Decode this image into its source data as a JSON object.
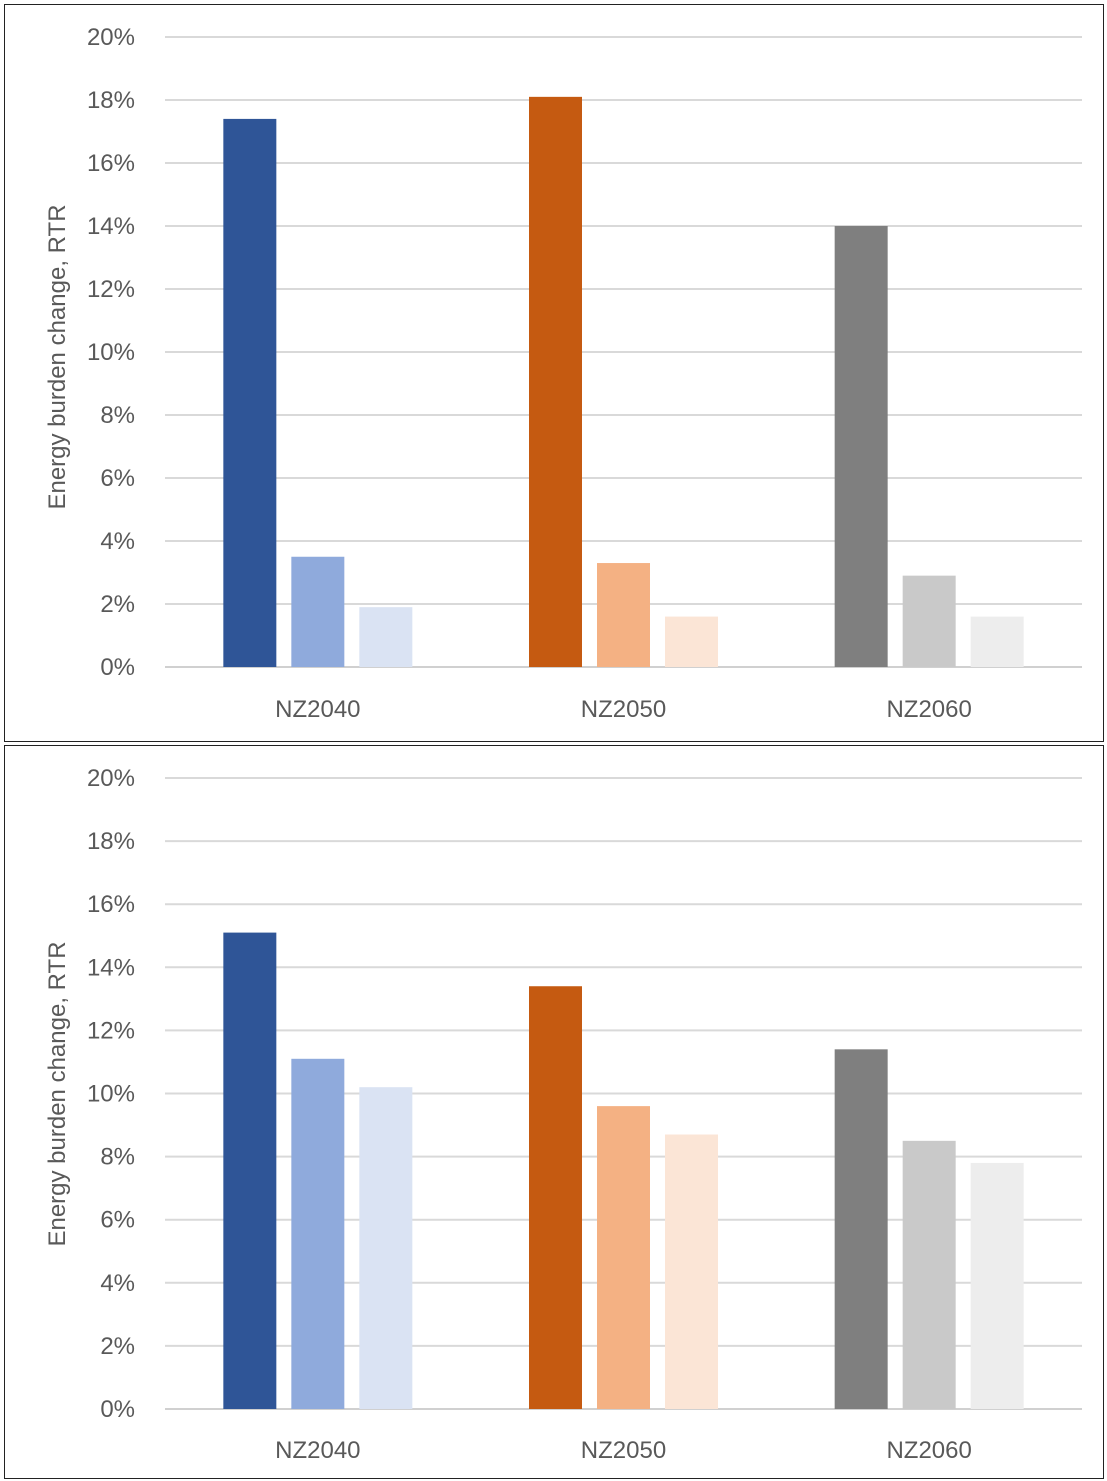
{
  "chart_data": [
    {
      "type": "bar",
      "title": "",
      "xlabel": "",
      "ylabel": "Energy burden change, RTR",
      "ylim": [
        0,
        20
      ],
      "yticks": [
        "0%",
        "2%",
        "4%",
        "6%",
        "8%",
        "10%",
        "12%",
        "14%",
        "16%",
        "18%",
        "20%"
      ],
      "grid": true,
      "categories": [
        "NZ2040",
        "NZ2050",
        "NZ2060"
      ],
      "series": [
        {
          "values": [
            17.4,
            18.1,
            14.0
          ],
          "colors": [
            "#2F5597",
            "#C55A11",
            "#7F7F7F"
          ]
        },
        {
          "values": [
            3.5,
            3.3,
            2.9
          ],
          "colors": [
            "#8FAADC",
            "#F4B183",
            "#C9C9C9"
          ]
        },
        {
          "values": [
            1.9,
            1.6,
            1.6
          ],
          "colors": [
            "#DAE3F3",
            "#FBE5D6",
            "#EDEDED"
          ]
        }
      ]
    },
    {
      "type": "bar",
      "title": "",
      "xlabel": "",
      "ylabel": "Energy burden change, RTR",
      "ylim": [
        0,
        20
      ],
      "yticks": [
        "0%",
        "2%",
        "4%",
        "6%",
        "8%",
        "10%",
        "12%",
        "14%",
        "16%",
        "18%",
        "20%"
      ],
      "grid": true,
      "categories": [
        "NZ2040",
        "NZ2050",
        "NZ2060"
      ],
      "series": [
        {
          "values": [
            15.1,
            13.4,
            11.4
          ],
          "colors": [
            "#2F5597",
            "#C55A11",
            "#7F7F7F"
          ]
        },
        {
          "values": [
            11.1,
            9.6,
            8.5
          ],
          "colors": [
            "#8FAADC",
            "#F4B183",
            "#C9C9C9"
          ]
        },
        {
          "values": [
            10.2,
            8.7,
            7.8
          ],
          "colors": [
            "#DAE3F3",
            "#FBE5D6",
            "#EDEDED"
          ]
        }
      ]
    }
  ]
}
